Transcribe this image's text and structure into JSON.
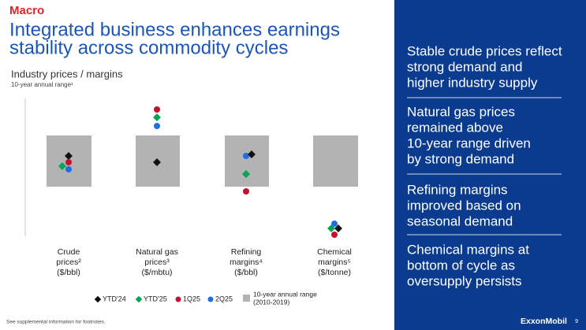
{
  "header": {
    "section": "Macro",
    "title": [
      "Integrated business enhances earnings",
      "stability across commodity cycles"
    ]
  },
  "chart": {
    "title": "Industry prices / margins",
    "subtitle": "10-year annual range¹",
    "groups": [
      {
        "label": [
          "Crude",
          "prices²",
          "($/bbl)"
        ]
      },
      {
        "label": [
          "Natural gas",
          "prices³",
          "($/mbtu)"
        ]
      },
      {
        "label": [
          "Refining",
          "margins⁴",
          "($/bbl)"
        ]
      },
      {
        "label": [
          "Chemical",
          "margins⁵",
          "($/tonne)"
        ]
      }
    ],
    "legend": [
      "YTD'24",
      "YTD'25",
      "1Q25",
      "2Q25"
    ],
    "range_legend": [
      "10-year annual range",
      "(2010-2019)"
    ]
  },
  "footnote": "See supplemental information for footnotes.",
  "panel": {
    "points": [
      [
        "Stable crude prices reflect",
        "strong demand and",
        "higher industry supply"
      ],
      [
        "Natural gas prices",
        "remained above",
        "10-year range driven",
        "by strong demand"
      ],
      [
        "Refining margins",
        "improved based on",
        "seasonal demand"
      ],
      [
        "Chemical margins at",
        "bottom of cycle as",
        "oversupply persists"
      ]
    ]
  },
  "footer": {
    "logo": "ExxonMobil",
    "page": "9"
  }
}
